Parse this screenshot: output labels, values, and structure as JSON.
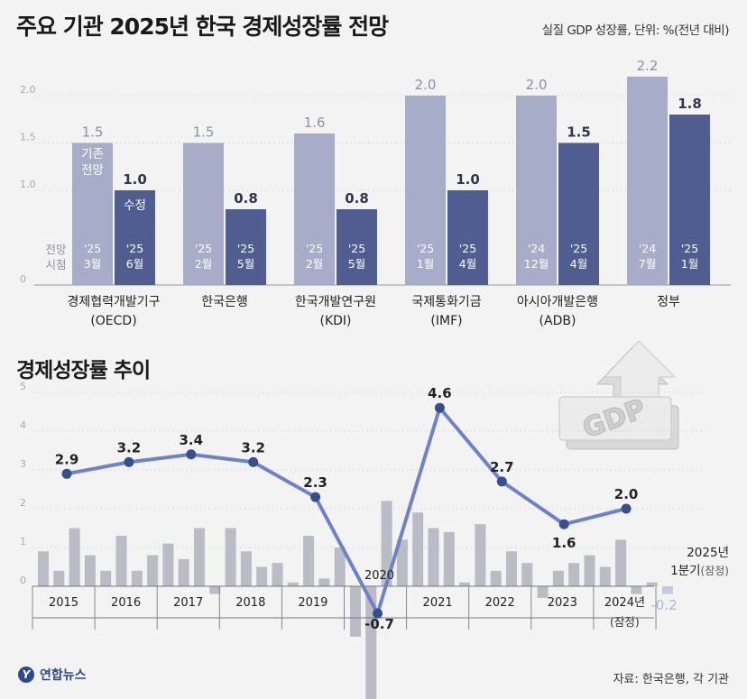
{
  "title": "주요 기관 2025년 한국 경제성장률 전망",
  "unit_note": "실질 GDP 성장률, 단위: %(전년 대비)",
  "subtitle": "경제성장률 추이",
  "source": "자료: 한국은행, 각 기관",
  "logo_text": "연합뉴스",
  "logo_mark": "Y",
  "gdp_text": "GDP",
  "colors": {
    "light_bar": "#a7adc9",
    "dark_bar": "#4f5d91",
    "line": "#6e82c8",
    "dot": "#36508e",
    "ts_bar": "#b9bbc5",
    "ts_bar_recent": "#c2cbe3"
  },
  "chart_data": [
    {
      "type": "bar",
      "title": "주요 기관 2025년 한국 경제성장률 전망",
      "ylim": [
        0,
        2.2
      ],
      "yticks": [
        "0",
        "1.0",
        "1.5",
        "2.0"
      ],
      "ytick_values": [
        0,
        1.0,
        1.5,
        2.0
      ],
      "prev_label": "기존 전망",
      "rev_label": "수정",
      "time_axis_label": "전망 시점",
      "groups": [
        {
          "institution": "경제협력개발기구",
          "abbr": "(OECD)",
          "prev": 1.5,
          "rev": 1.0,
          "prev_label": "1.5",
          "rev_label": "1.0",
          "prev_year": "'25",
          "prev_month": "3월",
          "rev_year": "'25",
          "rev_month": "6월"
        },
        {
          "institution": "한국은행",
          "abbr": "",
          "prev": 1.5,
          "rev": 0.8,
          "prev_label": "1.5",
          "rev_label": "0.8",
          "prev_year": "'25",
          "prev_month": "2월",
          "rev_year": "'25",
          "rev_month": "5월"
        },
        {
          "institution": "한국개발연구원",
          "abbr": "(KDI)",
          "prev": 1.6,
          "rev": 0.8,
          "prev_label": "1.6",
          "rev_label": "0.8",
          "prev_year": "'25",
          "prev_month": "2월",
          "rev_year": "'25",
          "rev_month": "5월"
        },
        {
          "institution": "국제통화기금",
          "abbr": "(IMF)",
          "prev": 2.0,
          "rev": 1.0,
          "prev_label": "2.0",
          "rev_label": "1.0",
          "prev_year": "'25",
          "prev_month": "1월",
          "rev_year": "'25",
          "rev_month": "4월"
        },
        {
          "institution": "아시아개발은행",
          "abbr": "(ADB)",
          "prev": 2.0,
          "rev": 1.5,
          "prev_label": "2.0",
          "rev_label": "1.5",
          "prev_year": "'24",
          "prev_month": "12월",
          "rev_year": "'25",
          "rev_month": "4월"
        },
        {
          "institution": "정부",
          "abbr": "",
          "prev": 2.2,
          "rev": 1.8,
          "prev_label": "2.2",
          "rev_label": "1.8",
          "prev_year": "'24",
          "prev_month": "7월",
          "rev_year": "'25",
          "rev_month": "1월"
        }
      ]
    },
    {
      "type": "line",
      "title": "경제성장률 추이",
      "ylim": [
        -2.4,
        5.0
      ],
      "yticks": [
        "0",
        "1",
        "2",
        "3",
        "4",
        "5"
      ],
      "ytick_values": [
        0,
        1,
        2,
        3,
        4,
        5
      ],
      "annual": [
        {
          "year": "2015",
          "value": 2.9,
          "label": "2.9"
        },
        {
          "year": "2016",
          "value": 3.2,
          "label": "3.2"
        },
        {
          "year": "2017",
          "value": 3.4,
          "label": "3.4"
        },
        {
          "year": "2018",
          "value": 3.2,
          "label": "3.2"
        },
        {
          "year": "2019",
          "value": 2.3,
          "label": "2.3"
        },
        {
          "year": "2020",
          "value": -0.7,
          "label": "-0.7"
        },
        {
          "year": "2021",
          "value": 4.6,
          "label": "4.6"
        },
        {
          "year": "2022",
          "value": 2.7,
          "label": "2.7"
        },
        {
          "year": "2023",
          "value": 1.6,
          "label": "1.6"
        },
        {
          "year": "2024년",
          "value": 2.0,
          "label": "2.0"
        }
      ],
      "year_labels": [
        "2015",
        "2016",
        "2017",
        "2018",
        "2019",
        "2020",
        "2021",
        "2022",
        "2023",
        "2024년"
      ],
      "note_2024": "(잠정)",
      "q2025_label_year": "2025년",
      "q2025_label_q": "1분기",
      "q2025_label_note": "(잠정)",
      "q2025_value": -0.2,
      "q2025_value_label": "-0.2",
      "quarterly": [
        0.9,
        0.4,
        1.5,
        0.8,
        0.4,
        1.3,
        0.4,
        0.8,
        1.1,
        0.7,
        1.5,
        -0.2,
        1.5,
        0.9,
        0.5,
        0.6,
        0.1,
        1.3,
        0.2,
        1.0,
        -1.3,
        -3.0,
        2.2,
        1.2,
        1.9,
        1.5,
        1.4,
        0.1,
        1.6,
        0.4,
        0.9,
        0.6,
        -0.3,
        0.4,
        0.6,
        0.8,
        0.5,
        1.2,
        -0.2,
        0.1,
        -0.2
      ]
    }
  ]
}
